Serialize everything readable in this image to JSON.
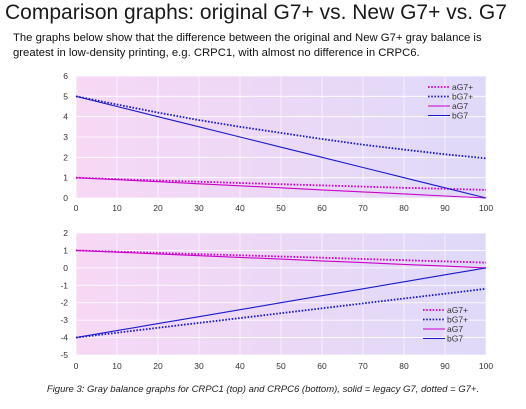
{
  "title": "Comparison graphs: original G7+ vs. New G7+ vs. G7",
  "subtitle": "The graphs below show that the difference between the original and New G7+ gray balance is greatest in low-density printing, e.g. CRPC1, with almost no difference in CRPC6.",
  "caption": "Figure 3: Gray balance graphs for CRPC1 (top) and CRPC6 (bottom), solid = legacy G7, dotted = G7+.",
  "colors": {
    "a": "#cc00cc",
    "b": "#1a1acc"
  },
  "chart_data": [
    {
      "type": "line",
      "title": "",
      "xlabel": "",
      "ylabel": "",
      "xlim": [
        0,
        100
      ],
      "ylim": [
        0,
        6
      ],
      "xticks": [
        0,
        10,
        20,
        30,
        40,
        50,
        60,
        70,
        80,
        90,
        100
      ],
      "yticks": [
        0,
        1,
        2,
        3,
        4,
        5,
        6
      ],
      "grid": true,
      "legend": "top-right",
      "x": [
        0,
        10,
        20,
        30,
        40,
        50,
        60,
        70,
        80,
        90,
        100
      ],
      "series": [
        {
          "name": "aG7+",
          "style": "dotted",
          "color": "a",
          "values": [
            1.0,
            0.93,
            0.86,
            0.8,
            0.74,
            0.68,
            0.62,
            0.56,
            0.5,
            0.45,
            0.4
          ]
        },
        {
          "name": "bG7+",
          "style": "dotted",
          "color": "b",
          "values": [
            5.0,
            4.6,
            4.2,
            3.83,
            3.5,
            3.2,
            2.9,
            2.62,
            2.38,
            2.15,
            1.95
          ]
        },
        {
          "name": "aG7",
          "style": "solid",
          "color": "a",
          "values": [
            1.0,
            0.9,
            0.8,
            0.7,
            0.6,
            0.5,
            0.4,
            0.3,
            0.2,
            0.1,
            0.0
          ]
        },
        {
          "name": "bG7",
          "style": "solid",
          "color": "b",
          "values": [
            5.0,
            4.5,
            4.0,
            3.5,
            3.0,
            2.5,
            2.0,
            1.5,
            1.0,
            0.5,
            0.0
          ]
        }
      ]
    },
    {
      "type": "line",
      "title": "",
      "xlabel": "",
      "ylabel": "",
      "xlim": [
        0,
        100
      ],
      "ylim": [
        -5,
        2
      ],
      "xticks": [
        0,
        10,
        20,
        30,
        40,
        50,
        60,
        70,
        80,
        90,
        100
      ],
      "yticks": [
        2,
        1,
        0,
        -1,
        -2,
        -3,
        -4,
        -5
      ],
      "grid": true,
      "legend": "bottom-right",
      "x": [
        0,
        10,
        20,
        30,
        40,
        50,
        60,
        70,
        80,
        90,
        100
      ],
      "series": [
        {
          "name": "aG7+",
          "style": "dotted",
          "color": "a",
          "values": [
            1.0,
            0.93,
            0.86,
            0.79,
            0.72,
            0.65,
            0.58,
            0.51,
            0.44,
            0.37,
            0.3
          ]
        },
        {
          "name": "bG7+",
          "style": "dotted",
          "color": "b",
          "values": [
            -4.0,
            -3.72,
            -3.44,
            -3.16,
            -2.88,
            -2.6,
            -2.32,
            -2.04,
            -1.76,
            -1.48,
            -1.2
          ]
        },
        {
          "name": "aG7",
          "style": "solid",
          "color": "a",
          "values": [
            1.0,
            0.9,
            0.8,
            0.7,
            0.6,
            0.5,
            0.4,
            0.3,
            0.2,
            0.1,
            0.0
          ]
        },
        {
          "name": "bG7",
          "style": "solid",
          "color": "b",
          "values": [
            -4.0,
            -3.6,
            -3.2,
            -2.8,
            -2.4,
            -2.0,
            -1.6,
            -1.2,
            -0.8,
            -0.4,
            0.0
          ]
        }
      ]
    }
  ]
}
